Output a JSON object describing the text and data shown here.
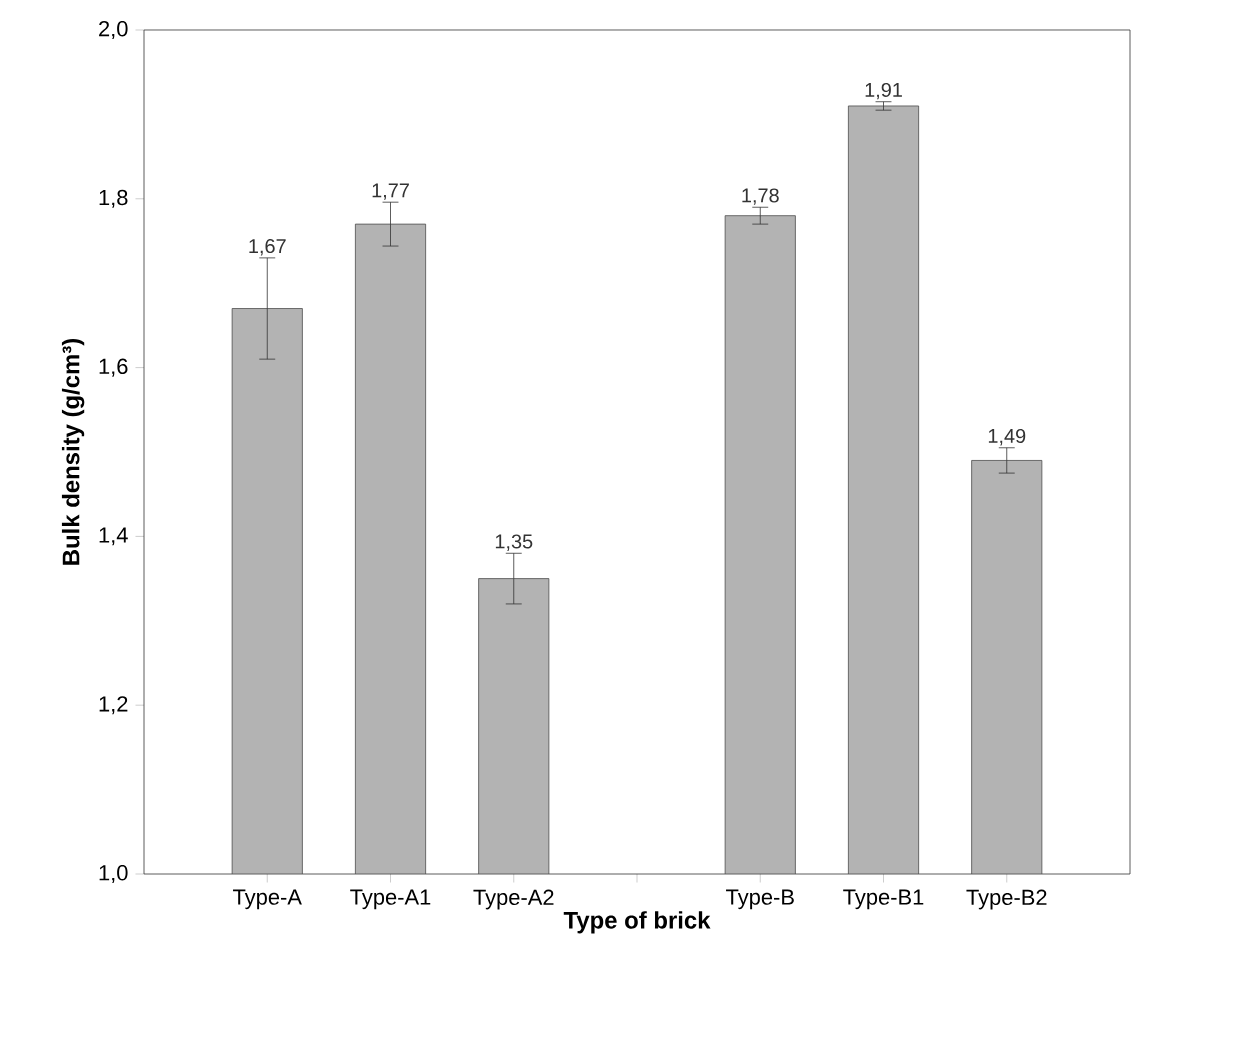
{
  "chart_data": {
    "type": "bar",
    "xlabel": "Type of brick",
    "ylabel": "Bulk density (g/cm³)",
    "categories": [
      "Type-A",
      "Type-A1",
      "Type-A2",
      null,
      "Type-B",
      "Type-B1",
      "Type-B2"
    ],
    "values": [
      1.67,
      1.77,
      1.35,
      null,
      1.78,
      1.91,
      1.49
    ],
    "errors": [
      0.06,
      0.026,
      0.03,
      null,
      0.01,
      0.005,
      0.015
    ],
    "value_labels": [
      "1,67",
      "1,77",
      "1,35",
      null,
      "1,78",
      "1,91",
      "1,49"
    ],
    "color": "#b3b3b3",
    "ylim": [
      1.0,
      2.0
    ],
    "yticks": [
      {
        "value": 1.0,
        "label": "1,0"
      },
      {
        "value": 1.2,
        "label": "1,2"
      },
      {
        "value": 1.4,
        "label": "1,4"
      },
      {
        "value": 1.6,
        "label": "1,6"
      },
      {
        "value": 1.8,
        "label": "1,8"
      },
      {
        "value": 2.0,
        "label": "2,0"
      }
    ],
    "grid": false
  }
}
